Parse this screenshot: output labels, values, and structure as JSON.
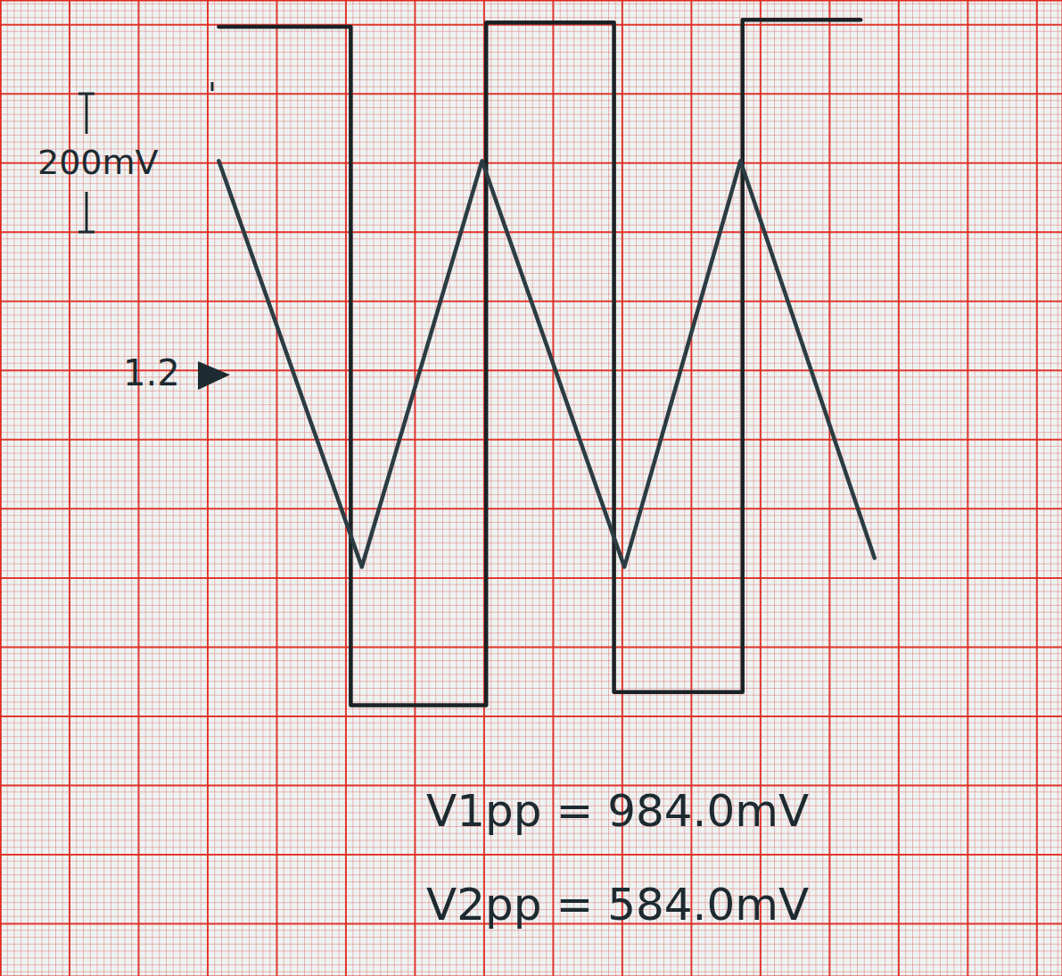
{
  "chart_data": {
    "type": "line",
    "series": [
      {
        "color": "#1b2226",
        "x": [
          3.16,
          5.07,
          5.07,
          7.03,
          7.03,
          8.88,
          8.88,
          10.74,
          10.74,
          12.45
        ],
        "values": [
          497,
          497,
          -484,
          -484,
          503,
          503,
          -465,
          -465,
          507,
          507
        ]
      },
      {
        "color": "#2b3c42",
        "x": [
          3.16,
          5.23,
          6.97,
          9.03,
          10.71,
          12.65
        ],
        "values": [
          303,
          -284,
          303,
          -284,
          303,
          -271
        ]
      }
    ],
    "xlim": [
      0,
      15.37
    ],
    "ylim": [
      -876,
      535
    ],
    "xticks": [
      0,
      1,
      2,
      3,
      4,
      5,
      6,
      7,
      8,
      9,
      10,
      11,
      12,
      13,
      14,
      15
    ],
    "yticks": [
      -800,
      -700,
      -600,
      -500,
      -400,
      -300,
      -200,
      -100,
      0,
      100,
      200,
      300,
      400,
      500
    ],
    "grid": true,
    "tick_labels": false,
    "annotations": [
      "200mV",
      "1.2",
      "V1pp = 984.0mV",
      "V2pp = 584.0mV"
    ]
  }
}
